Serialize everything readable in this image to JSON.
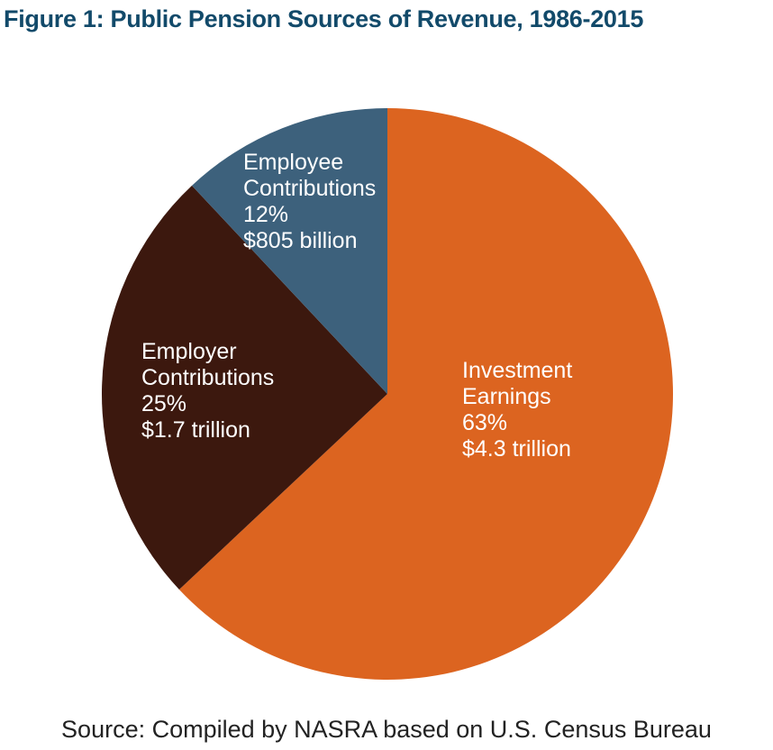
{
  "chart_data": {
    "type": "pie",
    "title": "Figure 1: Public Pension Sources of Revenue, 1986-2015",
    "categories": [
      "Investment Earnings",
      "Employer Contributions",
      "Employee Contributions"
    ],
    "values": [
      63,
      25,
      12
    ],
    "value_labels": [
      "63%",
      "25%",
      "12%"
    ],
    "amounts": [
      "$4.3 trillion",
      "$1.7 trillion",
      "$805 billion"
    ],
    "colors": [
      "#dc6420",
      "#3c180e",
      "#3d617c"
    ],
    "source": "Source: Compiled by NASRA based on U.S. Census Bureau"
  }
}
